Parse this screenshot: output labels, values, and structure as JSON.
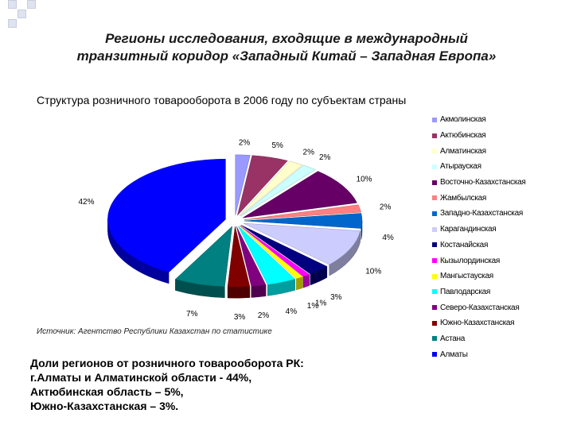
{
  "header": {
    "title_line1": "Регионы исследования, входящие в международный",
    "title_line2": "транзитный коридор «Западный Китай – Западная Европа»"
  },
  "chart_data": {
    "type": "pie",
    "title": "Структура розничного товарооборота в 2006 году по субъектам страны",
    "legend_position": "right",
    "slices": [
      {
        "name": "Акмолинская",
        "value": 2,
        "label": "2%",
        "color": "#9999ff"
      },
      {
        "name": "Актюбинская",
        "value": 5,
        "label": "5%",
        "color": "#993366"
      },
      {
        "name": "Алматинская",
        "value": 2,
        "label": "2%",
        "color": "#ffffcc"
      },
      {
        "name": "Атырауская",
        "value": 2,
        "label": "2%",
        "color": "#ccffff"
      },
      {
        "name": "Восточно-Казахстанская",
        "value": 10,
        "label": "10%",
        "color": "#660066"
      },
      {
        "name": "Жамбылская",
        "value": 2,
        "label": "2%",
        "color": "#ff8080"
      },
      {
        "name": "Западно-Казахстанская",
        "value": 4,
        "label": "4%",
        "color": "#0066cc"
      },
      {
        "name": "Карагандинская",
        "value": 10,
        "label": "10%",
        "color": "#ccccff"
      },
      {
        "name": "Костанайская",
        "value": 3,
        "label": "3%",
        "color": "#000080"
      },
      {
        "name": "Кызылординская",
        "value": 1,
        "label": "1%",
        "color": "#ff00ff"
      },
      {
        "name": "Мангыстауская",
        "value": 1,
        "label": "1%",
        "color": "#ffff00"
      },
      {
        "name": "Павлодарская",
        "value": 4,
        "label": "4%",
        "color": "#00ffff"
      },
      {
        "name": "Северо-Казахстанская",
        "value": 2,
        "label": "2%",
        "color": "#800080"
      },
      {
        "name": "Южно-Казахстанская",
        "value": 3,
        "label": "3%",
        "color": "#800000"
      },
      {
        "name": "Астана",
        "value": 7,
        "label": "7%",
        "color": "#008080"
      },
      {
        "name": "Алматы",
        "value": 42,
        "label": "42%",
        "color": "#0000ff"
      }
    ]
  },
  "source": "Источник: Агентство Республики Казахстан по статистике",
  "note": {
    "line1": "Доли регионов от розничного товарооборота РК:",
    "line2": "г.Алматы и Алматинской области - 44%,",
    "line3": "Актюбинская область – 5%,",
    "line4": "Южно-Казахстанская – 3%."
  }
}
